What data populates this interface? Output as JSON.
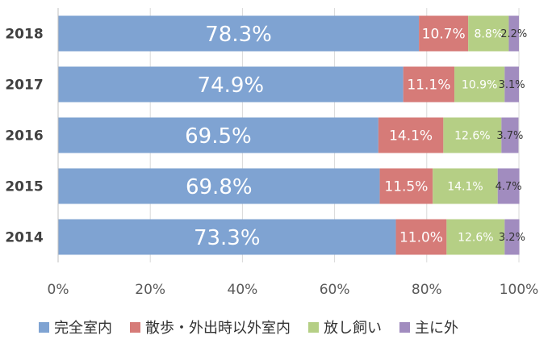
{
  "chart_data": {
    "type": "bar",
    "orientation": "horizontal",
    "stacked": true,
    "categories": [
      "2018",
      "2017",
      "2016",
      "2015",
      "2014"
    ],
    "series": [
      {
        "name": "完全室内",
        "color": "#7fa3d2",
        "values": [
          78.3,
          74.9,
          69.5,
          69.8,
          73.3
        ],
        "labels": [
          "78.3%",
          "74.9%",
          "69.5%",
          "69.8%",
          "73.3%"
        ]
      },
      {
        "name": "散歩・外出時以外室内",
        "color": "#d67b78",
        "values": [
          10.7,
          11.1,
          14.1,
          11.5,
          11.0
        ],
        "labels": [
          "10.7%",
          "11.1%",
          "14.1%",
          "11.5%",
          "11.0%"
        ]
      },
      {
        "name": "放し飼い",
        "color": "#b5cf85",
        "values": [
          8.8,
          10.9,
          12.6,
          14.1,
          12.6
        ],
        "labels": [
          "8.8%",
          "10.9%",
          "12.6%",
          "14.1%",
          "12.6%"
        ]
      },
      {
        "name": "主に外",
        "color": "#a18cbf",
        "values": [
          2.2,
          3.1,
          3.7,
          4.7,
          3.2
        ],
        "labels": [
          "2.2%",
          "3.1%",
          "3.7%",
          "4.7%",
          "3.2%"
        ]
      }
    ],
    "xlim": [
      0,
      100
    ],
    "xticks": [
      "0%",
      "20%",
      "40%",
      "60%",
      "80%",
      "100%"
    ],
    "grid": true,
    "legend_position": "bottom"
  }
}
